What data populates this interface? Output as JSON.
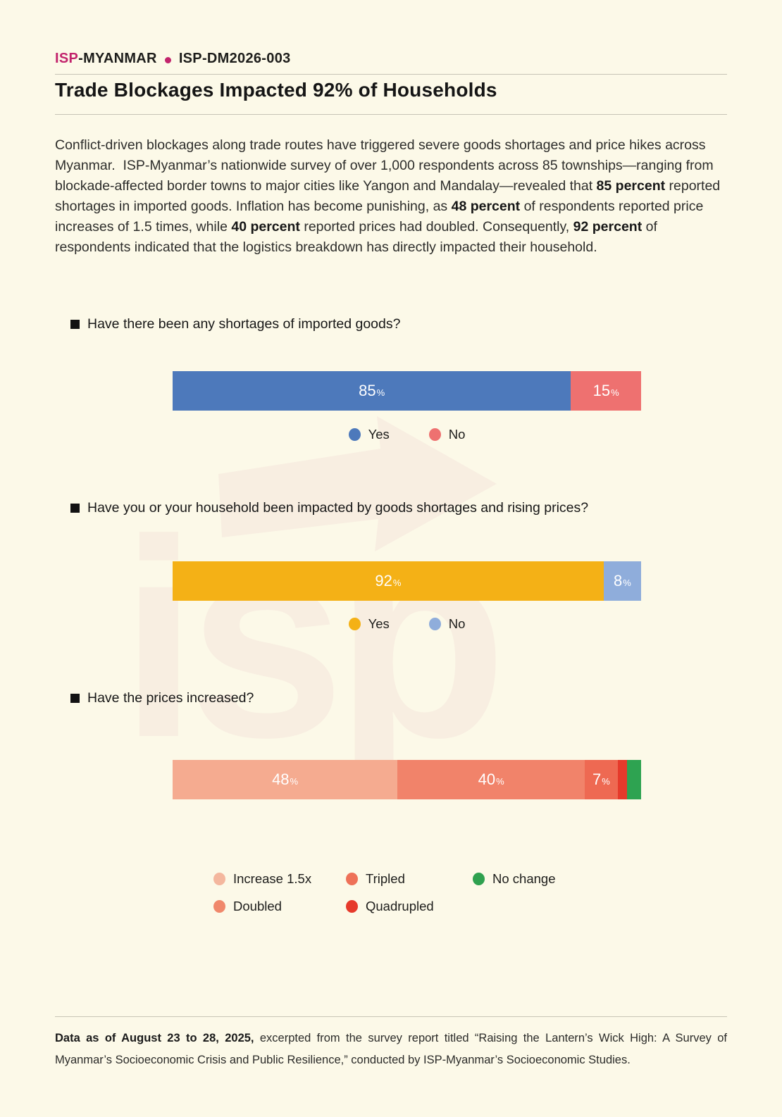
{
  "header": {
    "brand_primary": "ISP",
    "brand_secondary": "-MYANMAR",
    "doc_id": "ISP-DM2026-003"
  },
  "title": "Trade Blockages Impacted 92% of Households",
  "intro_segments": [
    {
      "text": "Conflict-driven blockages along trade routes have triggered severe goods shortages and price hikes across Myanmar.  ISP-Myanmar’s nationwide survey of over 1,000 respondents across 85 townships—ranging from blockade-affected border towns to major cities like Yangon and Mandalay—revealed that ",
      "bold": false
    },
    {
      "text": "85 percent",
      "bold": true
    },
    {
      "text": " reported shortages in imported goods. Inflation has become punishing, as ",
      "bold": false
    },
    {
      "text": "48 percent",
      "bold": true
    },
    {
      "text": " of respondents reported price increases of 1.5 times, while ",
      "bold": false
    },
    {
      "text": "40 percent",
      "bold": true
    },
    {
      "text": " reported prices had doubled. Consequently, ",
      "bold": false
    },
    {
      "text": "92 percent",
      "bold": true
    },
    {
      "text": " of respondents indicated that the logistics breakdown has directly impacted their household.",
      "bold": false
    }
  ],
  "chart_data": [
    {
      "type": "bar",
      "orientation": "horizontal-stacked",
      "question": "Have there been any shortages of imported goods?",
      "unit": "%",
      "xlim": [
        0,
        100
      ],
      "segments": [
        {
          "name": "Yes",
          "value": 85,
          "color": "#4D79BB",
          "show_label": true
        },
        {
          "name": "No",
          "value": 15,
          "color": "#EE7170",
          "show_label": true
        }
      ],
      "legend": [
        {
          "name": "Yes",
          "color": "#4D79BB"
        },
        {
          "name": "No",
          "color": "#EE7170"
        }
      ],
      "legend_position": "bottom-center"
    },
    {
      "type": "bar",
      "orientation": "horizontal-stacked",
      "question": "Have you or your household been impacted by goods shortages and rising prices?",
      "unit": "%",
      "xlim": [
        0,
        100
      ],
      "segments": [
        {
          "name": "Yes",
          "value": 92,
          "color": "#F4B116",
          "show_label": true
        },
        {
          "name": "No",
          "value": 8,
          "color": "#8FADDB",
          "show_label": true
        }
      ],
      "legend": [
        {
          "name": "Yes",
          "color": "#F4B116"
        },
        {
          "name": "No",
          "color": "#8FADDB"
        }
      ],
      "legend_position": "bottom-center"
    },
    {
      "type": "bar",
      "orientation": "horizontal-stacked",
      "question": "Have the prices increased?",
      "unit": "%",
      "xlim": [
        0,
        100
      ],
      "segments": [
        {
          "name": "Increase 1.5x",
          "value": 48,
          "color": "#F5AB90",
          "show_label": true
        },
        {
          "name": "Doubled",
          "value": 40,
          "color": "#F1836A",
          "show_label": true
        },
        {
          "name": "Tripled",
          "value": 7,
          "color": "#EE6952",
          "show_label": true
        },
        {
          "name": "Quadrupled",
          "value": 2,
          "color": "#E63A2B",
          "show_label": false
        },
        {
          "name": "No change",
          "value": 3,
          "color": "#2EA351",
          "show_label": false
        }
      ],
      "legend": [
        {
          "name": "Increase 1.5x",
          "color": "#F4B79E"
        },
        {
          "name": "Tripled",
          "color": "#EE7158"
        },
        {
          "name": "No change",
          "color": "#2FA14F"
        },
        {
          "name": "Doubled",
          "color": "#F0886B"
        },
        {
          "name": "Quadrupled",
          "color": "#E63A2B"
        }
      ],
      "legend_position": "bottom-grid"
    }
  ],
  "footer_segments": [
    {
      "text": "Data as of August 23 to 28, 2025,",
      "bold": true
    },
    {
      "text": " excerpted from the survey report titled “Raising the Lantern’s Wick High: A Survey of Myanmar’s Socioeconomic Crisis and Public Resilience,” conducted by ISP-Myanmar’s Socioeconomic Studies.",
      "bold": false
    }
  ],
  "watermark_text": "isp",
  "colors": {
    "page_background": "#FCF9E8",
    "brand_magenta": "#C2246C",
    "rule_gray": "#C7C4B6",
    "watermark": "#F8EEE1"
  }
}
